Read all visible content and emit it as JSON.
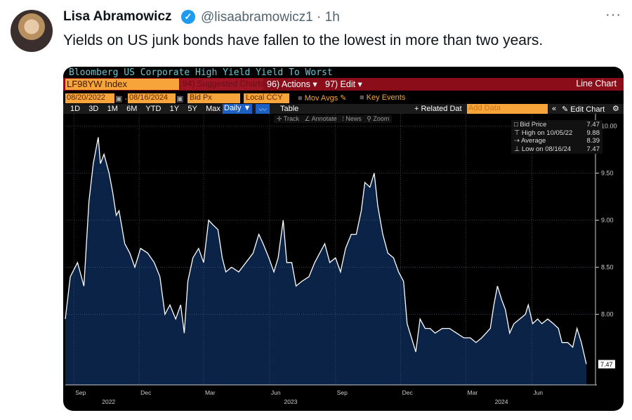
{
  "tweet": {
    "author": "Lisa Abramowicz",
    "handle": "@lisaabramowicz1",
    "time": "· 1h",
    "text": "Yields on US junk bonds have fallen to the lowest in more than two years.",
    "more": "···",
    "verified_icon": "check-badge-icon"
  },
  "terminal": {
    "title": "Bloomberg US Corporate High Yield Yield To Worst",
    "ticker": "LF98YW Index",
    "suggested": "94) Suggested Charts ▾",
    "actions": "96) Actions ▾",
    "edit": "97) Edit ▾",
    "chart_type": "Line Chart",
    "start_date": "08/20/2022",
    "end_date": "08/16/2024",
    "field": "Bid Px",
    "currency": "Local CCY",
    "mov_avgs": "Mov Avgs",
    "key_events": "Key Events",
    "periods": [
      "1D",
      "3D",
      "1M",
      "6M",
      "YTD",
      "1Y",
      "5Y",
      "Max"
    ],
    "frequency": "Daily ▼",
    "table": "Table",
    "related": "+ Related Dat",
    "add_data": "Add Data",
    "edit_chart": "Edit Chart",
    "tools": [
      "Track",
      "Annotate",
      "News",
      "Zoom"
    ],
    "legend": {
      "bid_label": "Bid Price",
      "bid_value": "7.47",
      "high_label": "High on 10/05/22",
      "high_value": "9.88",
      "avg_label": "Average",
      "avg_value": "8.39",
      "low_label": "Low on 08/16/24",
      "low_value": "7.47"
    },
    "colors": {
      "accent": "#f7a43a",
      "bar": "#8b0d1a",
      "area": "#0b2347",
      "title": "#6cc6cf",
      "active": "#1d5fc2"
    }
  },
  "chart_data": {
    "type": "area",
    "xlim": [
      "2022-08-20",
      "2024-08-16"
    ],
    "ylim": [
      7.25,
      10.13
    ],
    "grid": true,
    "y_ticks": [
      "10.00",
      "9.50",
      "9.00",
      "8.50",
      "8.00"
    ],
    "last_value_label": "7.47",
    "x_ticks": [
      {
        "label": "Sep",
        "date": "2022-09-01"
      },
      {
        "label": "Dec",
        "date": "2022-12-01"
      },
      {
        "label": "Mar",
        "date": "2023-03-01"
      },
      {
        "label": "Jun",
        "date": "2023-06-01"
      },
      {
        "label": "Sep",
        "date": "2023-09-01"
      },
      {
        "label": "Dec",
        "date": "2023-12-01"
      },
      {
        "label": "Mar",
        "date": "2024-03-01"
      },
      {
        "label": "Jun",
        "date": "2024-06-01"
      }
    ],
    "year_labels": [
      {
        "label": "2022",
        "date": "2022-10-20"
      },
      {
        "label": "2023",
        "date": "2023-07-01"
      },
      {
        "label": "2024",
        "date": "2024-04-20"
      }
    ],
    "series": [
      {
        "values": [
          [
            "2022-08-20",
            7.95
          ],
          [
            "2022-08-27",
            8.4
          ],
          [
            "2022-09-06",
            8.55
          ],
          [
            "2022-09-15",
            8.3
          ],
          [
            "2022-09-22",
            9.2
          ],
          [
            "2022-09-28",
            9.6
          ],
          [
            "2022-10-05",
            9.88
          ],
          [
            "2022-10-08",
            9.6
          ],
          [
            "2022-10-13",
            9.7
          ],
          [
            "2022-10-20",
            9.5
          ],
          [
            "2022-10-25",
            9.3
          ],
          [
            "2022-10-30",
            9.05
          ],
          [
            "2022-11-03",
            9.1
          ],
          [
            "2022-11-11",
            8.75
          ],
          [
            "2022-11-18",
            8.65
          ],
          [
            "2022-11-25",
            8.5
          ],
          [
            "2022-12-03",
            8.7
          ],
          [
            "2022-12-13",
            8.65
          ],
          [
            "2022-12-22",
            8.55
          ],
          [
            "2022-12-30",
            8.4
          ],
          [
            "2023-01-06",
            8.0
          ],
          [
            "2023-01-13",
            8.1
          ],
          [
            "2023-01-21",
            7.95
          ],
          [
            "2023-01-28",
            8.1
          ],
          [
            "2023-02-02",
            7.8
          ],
          [
            "2023-02-07",
            8.35
          ],
          [
            "2023-02-14",
            8.6
          ],
          [
            "2023-02-22",
            8.7
          ],
          [
            "2023-03-01",
            8.55
          ],
          [
            "2023-03-08",
            9.0
          ],
          [
            "2023-03-14",
            8.95
          ],
          [
            "2023-03-21",
            8.9
          ],
          [
            "2023-03-27",
            8.6
          ],
          [
            "2023-04-01",
            8.45
          ],
          [
            "2023-04-09",
            8.5
          ],
          [
            "2023-04-19",
            8.45
          ],
          [
            "2023-04-29",
            8.55
          ],
          [
            "2023-05-09",
            8.65
          ],
          [
            "2023-05-17",
            8.85
          ],
          [
            "2023-05-23",
            8.75
          ],
          [
            "2023-05-31",
            8.6
          ],
          [
            "2023-06-07",
            8.45
          ],
          [
            "2023-06-13",
            8.6
          ],
          [
            "2023-06-20",
            9.0
          ],
          [
            "2023-06-25",
            8.55
          ],
          [
            "2023-07-02",
            8.55
          ],
          [
            "2023-07-08",
            8.3
          ],
          [
            "2023-07-16",
            8.35
          ],
          [
            "2023-07-26",
            8.4
          ],
          [
            "2023-08-03",
            8.55
          ],
          [
            "2023-08-10",
            8.65
          ],
          [
            "2023-08-17",
            8.75
          ],
          [
            "2023-08-24",
            8.55
          ],
          [
            "2023-09-01",
            8.6
          ],
          [
            "2023-09-08",
            8.45
          ],
          [
            "2023-09-15",
            8.7
          ],
          [
            "2023-09-23",
            8.85
          ],
          [
            "2023-09-30",
            8.85
          ],
          [
            "2023-10-07",
            9.1
          ],
          [
            "2023-10-12",
            9.4
          ],
          [
            "2023-10-19",
            9.35
          ],
          [
            "2023-10-25",
            9.5
          ],
          [
            "2023-10-30",
            9.15
          ],
          [
            "2023-11-06",
            8.85
          ],
          [
            "2023-11-13",
            8.65
          ],
          [
            "2023-11-21",
            8.6
          ],
          [
            "2023-11-28",
            8.45
          ],
          [
            "2023-12-05",
            8.35
          ],
          [
            "2023-12-10",
            7.9
          ],
          [
            "2023-12-16",
            7.75
          ],
          [
            "2023-12-22",
            7.6
          ],
          [
            "2023-12-28",
            7.95
          ],
          [
            "2024-01-04",
            7.85
          ],
          [
            "2024-01-11",
            7.85
          ],
          [
            "2024-01-18",
            7.8
          ],
          [
            "2024-01-28",
            7.85
          ],
          [
            "2024-02-07",
            7.85
          ],
          [
            "2024-02-17",
            7.8
          ],
          [
            "2024-02-27",
            7.75
          ],
          [
            "2024-03-07",
            7.75
          ],
          [
            "2024-03-15",
            7.7
          ],
          [
            "2024-03-23",
            7.75
          ],
          [
            "2024-03-29",
            7.8
          ],
          [
            "2024-04-04",
            7.85
          ],
          [
            "2024-04-09",
            8.1
          ],
          [
            "2024-04-14",
            8.3
          ],
          [
            "2024-04-20",
            8.15
          ],
          [
            "2024-04-25",
            8.05
          ],
          [
            "2024-05-01",
            7.8
          ],
          [
            "2024-05-07",
            7.9
          ],
          [
            "2024-05-15",
            7.95
          ],
          [
            "2024-05-23",
            8.0
          ],
          [
            "2024-05-27",
            8.1
          ],
          [
            "2024-06-02",
            7.9
          ],
          [
            "2024-06-09",
            7.95
          ],
          [
            "2024-06-15",
            7.9
          ],
          [
            "2024-06-23",
            7.95
          ],
          [
            "2024-07-01",
            7.9
          ],
          [
            "2024-07-08",
            7.85
          ],
          [
            "2024-07-13",
            7.7
          ],
          [
            "2024-07-21",
            7.7
          ],
          [
            "2024-07-28",
            7.65
          ],
          [
            "2024-08-03",
            7.85
          ],
          [
            "2024-08-09",
            7.7
          ],
          [
            "2024-08-16",
            7.47
          ]
        ]
      }
    ]
  }
}
